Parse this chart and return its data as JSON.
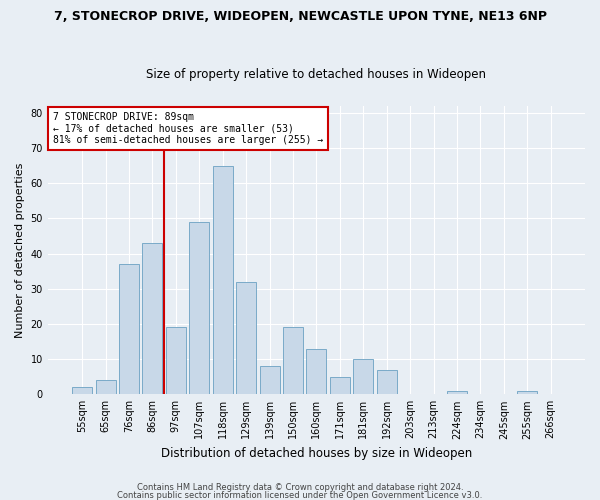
{
  "title1": "7, STONECROP DRIVE, WIDEOPEN, NEWCASTLE UPON TYNE, NE13 6NP",
  "title2": "Size of property relative to detached houses in Wideopen",
  "xlabel": "Distribution of detached houses by size in Wideopen",
  "ylabel": "Number of detached properties",
  "categories": [
    "55sqm",
    "65sqm",
    "76sqm",
    "86sqm",
    "97sqm",
    "107sqm",
    "118sqm",
    "129sqm",
    "139sqm",
    "150sqm",
    "160sqm",
    "171sqm",
    "181sqm",
    "192sqm",
    "203sqm",
    "213sqm",
    "224sqm",
    "234sqm",
    "245sqm",
    "255sqm",
    "266sqm"
  ],
  "values": [
    2,
    4,
    37,
    43,
    19,
    49,
    65,
    32,
    8,
    19,
    13,
    5,
    10,
    7,
    0,
    0,
    1,
    0,
    0,
    1,
    0
  ],
  "bar_color": "#c8d8e8",
  "bar_edge_color": "#7aaac8",
  "ylim": [
    0,
    82
  ],
  "yticks": [
    0,
    10,
    20,
    30,
    40,
    50,
    60,
    70,
    80
  ],
  "property_line_x": 3.5,
  "annotation_text_line1": "7 STONECROP DRIVE: 89sqm",
  "annotation_text_line2": "← 17% of detached houses are smaller (53)",
  "annotation_text_line3": "81% of semi-detached houses are larger (255) →",
  "annotation_box_color": "#ffffff",
  "annotation_box_edge": "#cc0000",
  "property_line_color": "#cc0000",
  "footer1": "Contains HM Land Registry data © Crown copyright and database right 2024.",
  "footer2": "Contains public sector information licensed under the Open Government Licence v3.0.",
  "bg_color": "#e8eef4",
  "plot_bg_color": "#e8eef4",
  "title1_fontsize": 9,
  "title2_fontsize": 8.5,
  "ylabel_fontsize": 8,
  "xlabel_fontsize": 8.5,
  "tick_fontsize": 7,
  "annot_fontsize": 7,
  "footer_fontsize": 6
}
